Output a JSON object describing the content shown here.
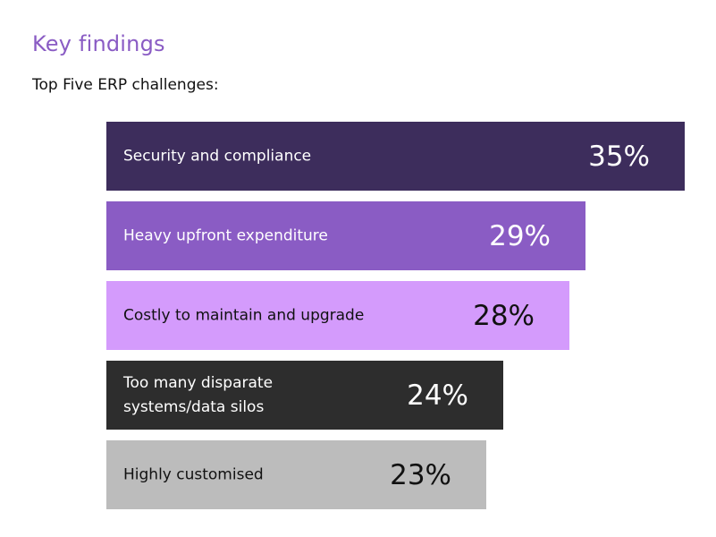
{
  "header": {
    "title": "Key findings",
    "subtitle": "Top Five ERP challenges:"
  },
  "chart_data": {
    "type": "bar",
    "orientation": "horizontal",
    "categories": [
      "Security and compliance",
      "Heavy upfront expenditure",
      "Costly to maintain and upgrade",
      "Too many disparate\nsystems/data silos",
      "Highly customised"
    ],
    "values": [
      35,
      29,
      28,
      24,
      23
    ],
    "value_labels": [
      "35%",
      "29%",
      "28%",
      "24%",
      "23%"
    ],
    "unit": "%",
    "colors": [
      "#3d2d5c",
      "#8a5cc4",
      "#d49bfc",
      "#2d2d2d",
      "#bcbcbc"
    ],
    "label_colors": [
      "#ffffff",
      "#ffffff",
      "#111111",
      "#ffffff",
      "#111111"
    ],
    "title": "",
    "xlabel": "",
    "ylabel": "",
    "grid": false,
    "legend": "none"
  }
}
